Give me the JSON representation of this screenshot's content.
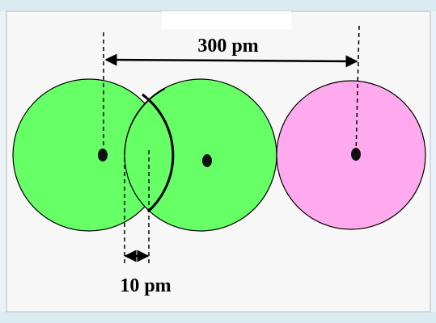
{
  "labels": {
    "top_distance": "300 pm",
    "bottom_distance": "10 pm"
  },
  "colors": {
    "atom_left": "#66ff66",
    "atom_middle": "#66ff66",
    "atom_right": "#ffaaee",
    "panel_background": "#f7f7f7",
    "page_background": "#e9f3f7"
  }
}
